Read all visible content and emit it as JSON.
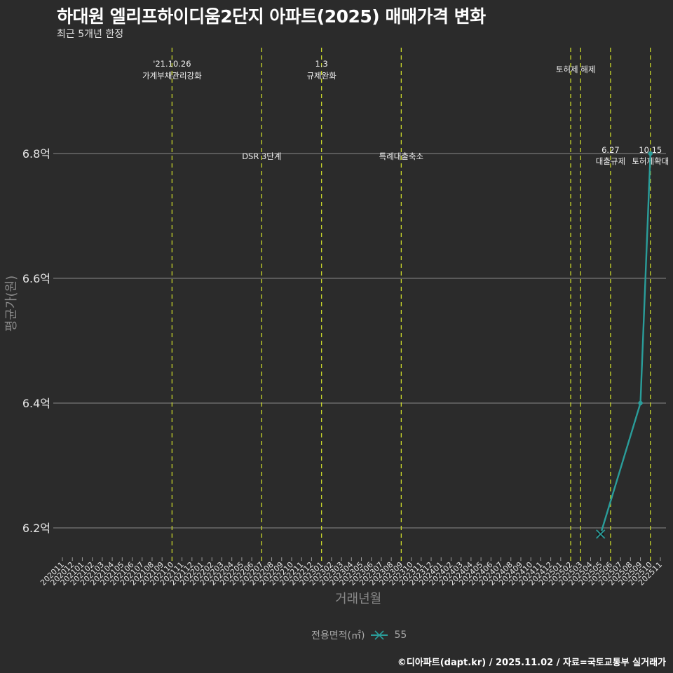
{
  "header": {
    "title": "하대원 엘리프하이디움2단지 아파트(2025) 매매가격 변화",
    "subtitle": "최근 5개년 한정"
  },
  "footer": {
    "credit": "©디아파트(dapt.kr) / 2025.11.02 / 자료=국토교통부 실거래가"
  },
  "legend": {
    "title": "전용면적(㎡)",
    "items": [
      {
        "label": "55",
        "color": "#2a9d9a"
      }
    ]
  },
  "axes": {
    "ylabel": "평균가(원)",
    "xlabel": "거래년월"
  },
  "colors": {
    "background": "#2b2b2b",
    "line": "#2a9d9a",
    "event_line": "#c8d62b",
    "grid": "#8a8a8a"
  },
  "chart_data": {
    "type": "line",
    "title": "하대원 엘리프하이디움2단지 아파트(2025) 매매가격 변화",
    "subtitle": "최근 5개년 한정",
    "xlabel": "거래년월",
    "ylabel": "평균가(원)",
    "ylim": [
      6.16,
      6.98
    ],
    "y_unit": "억",
    "yticks": [
      6.2,
      6.4,
      6.6,
      6.8
    ],
    "ytick_labels": [
      "6.2억",
      "6.4억",
      "6.6억",
      "6.8억"
    ],
    "grid": {
      "horizontal": true,
      "vertical": false
    },
    "legend_position": "bottom",
    "categories": [
      "202011",
      "202012",
      "202101",
      "202102",
      "202103",
      "202104",
      "202105",
      "202106",
      "202107",
      "202108",
      "202109",
      "202110",
      "202111",
      "202112",
      "202201",
      "202202",
      "202203",
      "202204",
      "202205",
      "202206",
      "202207",
      "202208",
      "202209",
      "202210",
      "202211",
      "202212",
      "202301",
      "202302",
      "202303",
      "202304",
      "202305",
      "202306",
      "202307",
      "202308",
      "202309",
      "202310",
      "202311",
      "202312",
      "202401",
      "202402",
      "202403",
      "202404",
      "202405",
      "202406",
      "202407",
      "202408",
      "202409",
      "202410",
      "202411",
      "202412",
      "202501",
      "202502",
      "202503",
      "202504",
      "202505",
      "202506",
      "202507",
      "202508",
      "202509",
      "202510",
      "202511"
    ],
    "series": [
      {
        "name": "55",
        "points": [
          {
            "x": "202505",
            "y": 6.19,
            "marker": "x"
          },
          {
            "x": "202509",
            "y": 6.4,
            "marker": "dot"
          },
          {
            "x": "202510",
            "y": 6.8,
            "marker": "dot"
          }
        ]
      }
    ],
    "annotations": [
      {
        "x": "202110",
        "lines": [
          "'21.10.26",
          "가계부채관리강화"
        ],
        "level": "top"
      },
      {
        "x": "202207",
        "lines": [
          "DSR 3단계"
        ],
        "level": "mid"
      },
      {
        "x": "202301",
        "lines": [
          "1.3",
          "규제완화"
        ],
        "level": "top"
      },
      {
        "x": "202309",
        "lines": [
          "특례대출축소"
        ],
        "level": "mid"
      },
      {
        "x": "202502",
        "lines": [
          "토허제 해제"
        ],
        "level": "top",
        "text_x": "202502.5"
      },
      {
        "x": "202503",
        "lines": [],
        "level": "none"
      },
      {
        "x": "202506",
        "lines": [
          "6.27",
          "대출규제"
        ],
        "level": "mid"
      },
      {
        "x": "202510",
        "lines": [
          "10.15",
          "토허제확대"
        ],
        "level": "mid"
      }
    ]
  }
}
